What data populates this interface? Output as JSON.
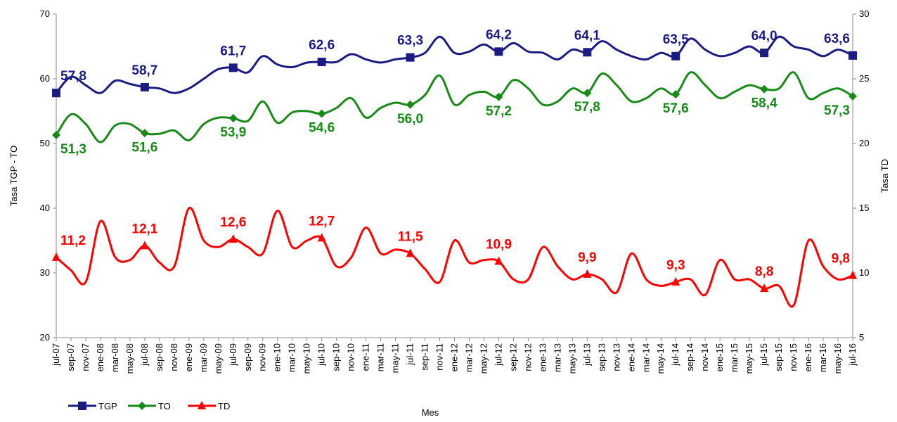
{
  "chart_data": {
    "type": "line",
    "x_label": "Mes",
    "y_label": "Tasa TGP - TO",
    "y2_label": "Tasa TD",
    "categories": [
      "jul-07",
      "sep-07",
      "nov-07",
      "ene-08",
      "mar-08",
      "may-08",
      "jul-08",
      "sep-08",
      "nov-08",
      "ene-09",
      "mar-09",
      "may-09",
      "jul-09",
      "sep-09",
      "nov-09",
      "ene-10",
      "mar-10",
      "may-10",
      "jul-10",
      "sep-10",
      "nov-10",
      "ene-11",
      "mar-11",
      "may-11",
      "jul-11",
      "sep-11",
      "nov-11",
      "ene-12",
      "mar-12",
      "may-12",
      "jul-12",
      "sep-12",
      "nov-12",
      "ene-13",
      "mar-13",
      "may-13",
      "jul-13",
      "sep-13",
      "nov-13",
      "ene-14",
      "mar-14",
      "may-14",
      "jul-14",
      "sep-14",
      "nov-14",
      "ene-15",
      "mar-15",
      "may-15",
      "jul-15",
      "sep-15",
      "nov-15",
      "ene-16",
      "mar-16",
      "may-16",
      "jul-16"
    ],
    "ylim": [
      20,
      70
    ],
    "yticks": [
      20,
      30,
      40,
      50,
      60,
      70
    ],
    "y2lim": [
      5,
      30
    ],
    "y2ticks": [
      5,
      10,
      15,
      20,
      25,
      30
    ],
    "legend": "bottom-left",
    "series": [
      {
        "name": "TGP",
        "color": "#1b1b84",
        "marker": "square",
        "values": [
          57.8,
          60.3,
          59.0,
          57.8,
          59.7,
          59.2,
          58.7,
          58.5,
          57.8,
          58.5,
          60.0,
          61.5,
          61.7,
          61.0,
          63.5,
          62.2,
          61.8,
          62.5,
          62.6,
          62.6,
          63.8,
          63.0,
          62.5,
          63.0,
          63.3,
          64.0,
          66.5,
          64.0,
          64.2,
          65.3,
          64.2,
          65.5,
          64.2,
          64.0,
          63.0,
          64.5,
          64.1,
          65.8,
          64.5,
          63.5,
          63.0,
          64.0,
          63.5,
          66.2,
          64.5,
          63.5,
          64.0,
          65.0,
          64.0,
          66.5,
          65.0,
          64.5,
          63.5,
          64.5,
          63.6
        ],
        "value_labels": [
          "57,8",
          null,
          null,
          null,
          null,
          null,
          "58,7",
          null,
          null,
          null,
          null,
          null,
          "61,7",
          null,
          null,
          null,
          null,
          null,
          "62,6",
          null,
          null,
          null,
          null,
          null,
          "63,3",
          null,
          null,
          null,
          null,
          null,
          "64,2",
          null,
          null,
          null,
          null,
          null,
          "64,1",
          null,
          null,
          null,
          null,
          null,
          "63,5",
          null,
          null,
          null,
          null,
          null,
          "64,0",
          null,
          null,
          null,
          null,
          null,
          "63,6"
        ]
      },
      {
        "name": "TO",
        "color": "#178a17",
        "marker": "diamond",
        "values": [
          51.3,
          54.5,
          53.0,
          50.2,
          52.8,
          53.0,
          51.6,
          51.5,
          52.0,
          50.5,
          53.0,
          54.0,
          53.9,
          53.5,
          56.5,
          53.2,
          54.8,
          55.0,
          54.6,
          55.5,
          57.0,
          54.0,
          55.5,
          56.3,
          56.0,
          57.5,
          60.5,
          56.0,
          57.5,
          58.0,
          57.2,
          59.8,
          58.5,
          56.0,
          56.5,
          58.5,
          57.8,
          60.8,
          59.0,
          56.5,
          57.0,
          58.5,
          57.6,
          61.0,
          59.0,
          57.0,
          58.0,
          59.0,
          58.4,
          58.5,
          61.0,
          57.0,
          57.8,
          58.5,
          57.3
        ],
        "value_labels": [
          "51,3",
          null,
          null,
          null,
          null,
          null,
          "51,6",
          null,
          null,
          null,
          null,
          null,
          "53,9",
          null,
          null,
          null,
          null,
          null,
          "54,6",
          null,
          null,
          null,
          null,
          null,
          "56,0",
          null,
          null,
          null,
          null,
          null,
          "57,2",
          null,
          null,
          null,
          null,
          null,
          "57,8",
          null,
          null,
          null,
          null,
          null,
          "57,6",
          null,
          null,
          null,
          null,
          null,
          "58,4",
          null,
          null,
          null,
          null,
          null,
          "57,3"
        ]
      },
      {
        "name": "TD",
        "color": "#ff0000",
        "marker": "triangle",
        "axis": "y2",
        "values": [
          11.2,
          10.2,
          9.3,
          14.0,
          11.2,
          11.0,
          12.1,
          10.8,
          10.5,
          15.0,
          12.5,
          12.0,
          12.6,
          12.0,
          11.5,
          14.8,
          12.0,
          12.5,
          12.7,
          10.5,
          11.2,
          13.5,
          11.5,
          11.8,
          11.5,
          10.3,
          9.3,
          12.5,
          10.8,
          11.0,
          10.9,
          9.5,
          9.5,
          12.0,
          10.5,
          9.5,
          9.9,
          9.5,
          8.5,
          11.5,
          9.5,
          9.0,
          9.3,
          9.5,
          8.3,
          11.0,
          9.5,
          9.5,
          8.8,
          9.0,
          7.5,
          12.5,
          10.5,
          9.5,
          9.8
        ],
        "value_labels": [
          "11,2",
          null,
          null,
          null,
          null,
          null,
          "12,1",
          null,
          null,
          null,
          null,
          null,
          "12,6",
          null,
          null,
          null,
          null,
          null,
          "12,7",
          null,
          null,
          null,
          null,
          null,
          "11,5",
          null,
          null,
          null,
          null,
          null,
          "10,9",
          null,
          null,
          null,
          null,
          null,
          "9,9",
          null,
          null,
          null,
          null,
          null,
          "9,3",
          null,
          null,
          null,
          null,
          null,
          "8,8",
          null,
          null,
          null,
          null,
          null,
          "9,8"
        ]
      }
    ]
  }
}
